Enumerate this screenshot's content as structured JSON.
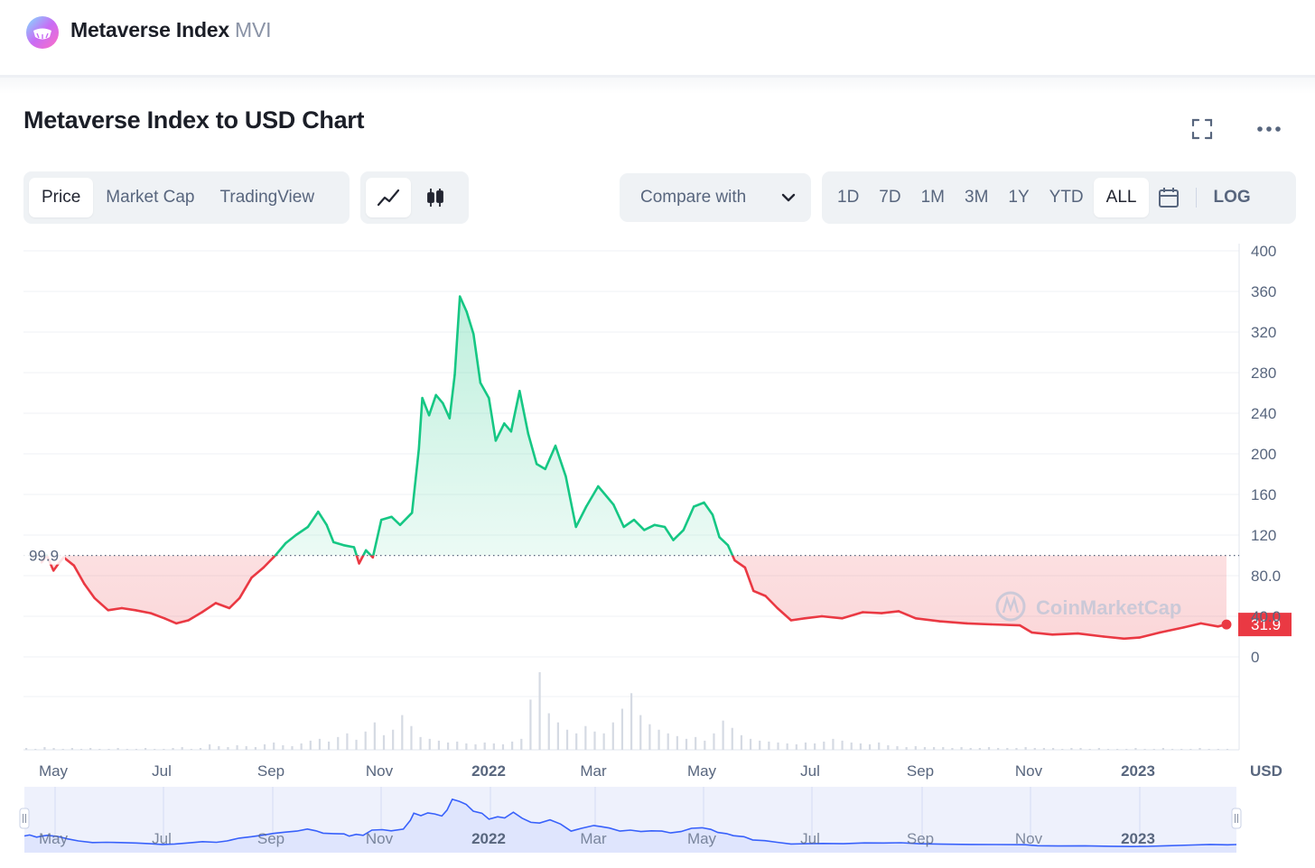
{
  "header": {
    "coin_name": "Metaverse Index",
    "coin_symbol": "MVI"
  },
  "chart_title": "Metaverse Index to USD Chart",
  "data_tabs": [
    {
      "label": "Price",
      "active": true
    },
    {
      "label": "Market Cap",
      "active": false
    },
    {
      "label": "TradingView",
      "active": false
    }
  ],
  "chart_styles": [
    {
      "icon": "line-chart-icon",
      "active": true
    },
    {
      "icon": "candlestick-icon",
      "active": false
    }
  ],
  "compare": {
    "label": "Compare with"
  },
  "ranges": [
    {
      "label": "1D",
      "active": false
    },
    {
      "label": "7D",
      "active": false
    },
    {
      "label": "1M",
      "active": false
    },
    {
      "label": "3M",
      "active": false
    },
    {
      "label": "1Y",
      "active": false
    },
    {
      "label": "YTD",
      "active": false
    },
    {
      "label": "ALL",
      "active": true
    }
  ],
  "log_label": "LOG",
  "watermark": "CoinMarketCap",
  "colors": {
    "up": "#16c784",
    "down": "#ea3943",
    "navigator": "#3861fb",
    "navigator_fill": "#dfe5fd"
  },
  "chart_data": {
    "type": "line",
    "currency": "USD",
    "y_ticks": [
      "400",
      "360",
      "320",
      "280",
      "240",
      "200",
      "160",
      "120",
      "80.0",
      "40.0",
      "0"
    ],
    "ylim": [
      0,
      400
    ],
    "x_ticks": [
      {
        "label": "May",
        "bold": false
      },
      {
        "label": "Jul",
        "bold": false
      },
      {
        "label": "Sep",
        "bold": false
      },
      {
        "label": "Nov",
        "bold": false
      },
      {
        "label": "2022",
        "bold": true
      },
      {
        "label": "Mar",
        "bold": false
      },
      {
        "label": "May",
        "bold": false
      },
      {
        "label": "Jul",
        "bold": false
      },
      {
        "label": "Sep",
        "bold": false
      },
      {
        "label": "Nov",
        "bold": false
      },
      {
        "label": "2023",
        "bold": true
      }
    ],
    "baseline_price": 99.9,
    "baseline_label": "99.9",
    "current_price": 31.9,
    "current_label": "31.9",
    "series": [
      {
        "points": [
          [
            "2021-04-07",
            93
          ],
          [
            "2021-04-10",
            100
          ],
          [
            "2021-04-14",
            85
          ],
          [
            "2021-04-17",
            92
          ],
          [
            "2021-04-20",
            98
          ],
          [
            "2021-04-26",
            90
          ],
          [
            "2021-05-02",
            72
          ],
          [
            "2021-05-08",
            58
          ],
          [
            "2021-05-16",
            46
          ],
          [
            "2021-05-24",
            48
          ],
          [
            "2021-06-01",
            46
          ],
          [
            "2021-06-10",
            43
          ],
          [
            "2021-06-18",
            38
          ],
          [
            "2021-06-25",
            33
          ],
          [
            "2021-07-02",
            36
          ],
          [
            "2021-07-10",
            44
          ],
          [
            "2021-07-18",
            53
          ],
          [
            "2021-07-26",
            48
          ],
          [
            "2021-08-01",
            58
          ],
          [
            "2021-08-08",
            78
          ],
          [
            "2021-08-15",
            88
          ],
          [
            "2021-08-22",
            100
          ],
          [
            "2021-08-28",
            112
          ],
          [
            "2021-09-03",
            120
          ],
          [
            "2021-09-10",
            128
          ],
          [
            "2021-09-16",
            143
          ],
          [
            "2021-09-21",
            130
          ],
          [
            "2021-09-25",
            113
          ],
          [
            "2021-10-01",
            110
          ],
          [
            "2021-10-07",
            108
          ],
          [
            "2021-10-10",
            92
          ],
          [
            "2021-10-14",
            105
          ],
          [
            "2021-10-18",
            98
          ],
          [
            "2021-10-23",
            135
          ],
          [
            "2021-10-29",
            138
          ],
          [
            "2021-11-03",
            130
          ],
          [
            "2021-11-10",
            142
          ],
          [
            "2021-11-14",
            205
          ],
          [
            "2021-11-16",
            255
          ],
          [
            "2021-11-20",
            238
          ],
          [
            "2021-11-24",
            258
          ],
          [
            "2021-11-28",
            250
          ],
          [
            "2021-12-02",
            235
          ],
          [
            "2021-12-05",
            278
          ],
          [
            "2021-12-08",
            355
          ],
          [
            "2021-12-12",
            340
          ],
          [
            "2021-12-16",
            318
          ],
          [
            "2021-12-20",
            270
          ],
          [
            "2021-12-25",
            255
          ],
          [
            "2021-12-29",
            213
          ],
          [
            "2022-01-03",
            230
          ],
          [
            "2022-01-07",
            222
          ],
          [
            "2022-01-12",
            262
          ],
          [
            "2022-01-17",
            220
          ],
          [
            "2022-01-22",
            190
          ],
          [
            "2022-01-27",
            185
          ],
          [
            "2022-02-02",
            208
          ],
          [
            "2022-02-08",
            178
          ],
          [
            "2022-02-14",
            128
          ],
          [
            "2022-02-20",
            148
          ],
          [
            "2022-02-27",
            168
          ],
          [
            "2022-03-03",
            160
          ],
          [
            "2022-03-08",
            150
          ],
          [
            "2022-03-14",
            128
          ],
          [
            "2022-03-20",
            135
          ],
          [
            "2022-03-26",
            125
          ],
          [
            "2022-04-01",
            130
          ],
          [
            "2022-04-07",
            128
          ],
          [
            "2022-04-12",
            115
          ],
          [
            "2022-04-18",
            125
          ],
          [
            "2022-04-24",
            148
          ],
          [
            "2022-04-30",
            152
          ],
          [
            "2022-05-05",
            140
          ],
          [
            "2022-05-09",
            118
          ],
          [
            "2022-05-14",
            110
          ],
          [
            "2022-05-18",
            95
          ],
          [
            "2022-05-24",
            88
          ],
          [
            "2022-05-29",
            65
          ],
          [
            "2022-06-05",
            60
          ],
          [
            "2022-06-12",
            48
          ],
          [
            "2022-06-20",
            36
          ],
          [
            "2022-06-28",
            38
          ],
          [
            "2022-07-08",
            40
          ],
          [
            "2022-07-20",
            38
          ],
          [
            "2022-08-01",
            44
          ],
          [
            "2022-08-12",
            43
          ],
          [
            "2022-08-22",
            45
          ],
          [
            "2022-09-01",
            38
          ],
          [
            "2022-09-15",
            35
          ],
          [
            "2022-10-01",
            33
          ],
          [
            "2022-10-15",
            32
          ],
          [
            "2022-11-01",
            31
          ],
          [
            "2022-11-08",
            24
          ],
          [
            "2022-11-20",
            22
          ],
          [
            "2022-12-05",
            23
          ],
          [
            "2022-12-20",
            20
          ],
          [
            "2023-01-01",
            18
          ],
          [
            "2023-01-10",
            19
          ],
          [
            "2023-01-22",
            24
          ],
          [
            "2023-02-05",
            29
          ],
          [
            "2023-02-15",
            33
          ],
          [
            "2023-02-25",
            30
          ],
          [
            "2023-03-02",
            31.9
          ]
        ]
      }
    ],
    "volume": [
      2,
      1,
      3,
      2,
      1,
      2,
      1,
      2,
      1,
      1,
      2,
      1,
      1,
      2,
      1,
      1,
      2,
      3,
      1,
      2,
      6,
      4,
      3,
      5,
      4,
      3,
      6,
      8,
      5,
      4,
      7,
      10,
      12,
      9,
      14,
      18,
      11,
      20,
      30,
      16,
      22,
      38,
      26,
      14,
      12,
      10,
      8,
      9,
      7,
      6,
      8,
      7,
      6,
      9,
      12,
      55,
      85,
      40,
      30,
      22,
      18,
      26,
      20,
      18,
      30,
      45,
      62,
      38,
      28,
      22,
      18,
      15,
      12,
      14,
      10,
      18,
      32,
      24,
      16,
      12,
      10,
      9,
      8,
      7,
      6,
      8,
      7,
      9,
      12,
      10,
      8,
      7,
      6,
      8,
      5,
      4,
      3,
      4,
      3,
      3,
      3,
      2,
      3,
      2,
      2,
      3,
      2,
      2,
      2,
      3,
      2,
      2,
      2,
      1,
      2,
      2,
      1,
      2,
      1,
      1,
      1,
      2,
      1,
      1,
      2,
      1,
      1,
      1,
      2,
      1,
      1,
      1
    ],
    "navigator_x_ticks": [
      {
        "label": "May",
        "bold": false
      },
      {
        "label": "Jul",
        "bold": false
      },
      {
        "label": "Sep",
        "bold": false
      },
      {
        "label": "Nov",
        "bold": false
      },
      {
        "label": "2022",
        "bold": true
      },
      {
        "label": "Mar",
        "bold": false
      },
      {
        "label": "May",
        "bold": false
      },
      {
        "label": "Jul",
        "bold": false
      },
      {
        "label": "Sep",
        "bold": false
      },
      {
        "label": "Nov",
        "bold": false
      },
      {
        "label": "2023",
        "bold": true
      }
    ]
  }
}
